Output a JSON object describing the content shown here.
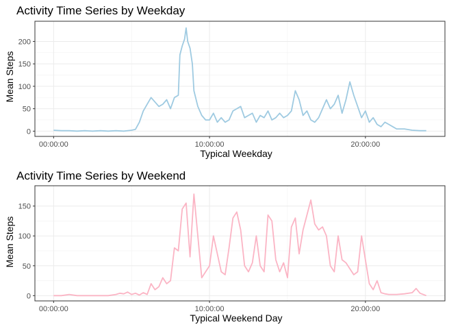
{
  "chart_data": [
    {
      "type": "line",
      "title": "Activity Time Series by Weekday",
      "xlabel": "Typical Weekday",
      "ylabel": "Mean Steps",
      "x_ticks": [
        {
          "hour": 0,
          "label": "00:00:00"
        },
        {
          "hour": 10,
          "label": "10:00:00"
        },
        {
          "hour": 20,
          "label": "20:00:00"
        }
      ],
      "y_ticks": [
        0,
        50,
        100,
        150,
        200
      ],
      "xlim": [
        -1.2,
        25.1
      ],
      "ylim": [
        -11.7,
        245
      ],
      "grid": true,
      "color": "#9ECAE1",
      "series": [
        {
          "x": [
            0,
            0.5,
            1,
            1.5,
            2,
            2.5,
            3,
            3.5,
            4,
            4.5,
            5,
            5.25,
            5.5,
            5.75,
            6,
            6.25,
            6.5,
            6.75,
            7,
            7.25,
            7.5,
            7.75,
            8,
            8.1,
            8.25,
            8.4,
            8.5,
            8.6,
            8.75,
            8.9,
            9,
            9.25,
            9.5,
            9.75,
            10,
            10.25,
            10.5,
            10.75,
            11,
            11.25,
            11.5,
            11.75,
            12,
            12.25,
            12.5,
            12.75,
            13,
            13.25,
            13.5,
            13.75,
            14,
            14.25,
            14.5,
            14.75,
            15,
            15.25,
            15.5,
            15.75,
            16,
            16.25,
            16.5,
            16.75,
            17,
            17.25,
            17.5,
            17.75,
            18,
            18.25,
            18.5,
            18.75,
            19,
            19.25,
            19.5,
            19.75,
            20,
            20.25,
            20.5,
            20.75,
            21,
            21.25,
            21.5,
            21.75,
            22,
            22.5,
            23,
            23.5,
            23.9
          ],
          "y": [
            2,
            1,
            1,
            0,
            1,
            0,
            1,
            0,
            1,
            0,
            2,
            4,
            20,
            45,
            60,
            75,
            65,
            55,
            60,
            70,
            50,
            75,
            80,
            170,
            190,
            205,
            230,
            200,
            185,
            150,
            90,
            55,
            35,
            25,
            25,
            40,
            20,
            30,
            20,
            25,
            45,
            50,
            55,
            30,
            35,
            40,
            20,
            35,
            30,
            45,
            25,
            30,
            40,
            30,
            35,
            45,
            90,
            70,
            35,
            45,
            25,
            20,
            30,
            50,
            70,
            50,
            60,
            80,
            40,
            70,
            110,
            80,
            55,
            30,
            45,
            20,
            30,
            15,
            10,
            20,
            15,
            10,
            5,
            5,
            2,
            1,
            1
          ]
        }
      ]
    },
    {
      "type": "line",
      "title": "Activity Time Series by Weekend",
      "xlabel": "Typical Weekend Day",
      "ylabel": "Mean Steps",
      "x_ticks": [
        {
          "hour": 0,
          "label": "00:00:00"
        },
        {
          "hour": 10,
          "label": "10:00:00"
        },
        {
          "hour": 20,
          "label": "20:00:00"
        }
      ],
      "y_ticks": [
        0,
        50,
        100,
        150
      ],
      "xlim": [
        -1.2,
        25.1
      ],
      "ylim": [
        -8.8,
        184
      ],
      "grid": true,
      "color": "#FBB4C4",
      "series": [
        {
          "x": [
            0,
            0.5,
            1,
            1.5,
            2,
            2.5,
            3,
            3.5,
            4,
            4.25,
            4.5,
            4.75,
            5,
            5.25,
            5.5,
            5.75,
            6,
            6.25,
            6.5,
            6.75,
            7,
            7.25,
            7.5,
            7.75,
            8,
            8.25,
            8.5,
            8.75,
            9,
            9.25,
            9.5,
            9.75,
            10,
            10.25,
            10.5,
            10.75,
            11,
            11.25,
            11.5,
            11.75,
            12,
            12.25,
            12.5,
            12.75,
            13,
            13.25,
            13.5,
            13.75,
            14,
            14.25,
            14.5,
            14.75,
            15,
            15.25,
            15.5,
            15.75,
            16,
            16.25,
            16.5,
            16.75,
            17,
            17.25,
            17.5,
            17.75,
            18,
            18.25,
            18.5,
            18.75,
            19,
            19.25,
            19.5,
            19.75,
            20,
            20.25,
            20.5,
            20.75,
            21,
            21.25,
            21.5,
            21.75,
            22,
            22.5,
            23,
            23.25,
            23.5,
            23.9
          ],
          "y": [
            0,
            0,
            2,
            0,
            0,
            0,
            0,
            0,
            2,
            4,
            3,
            6,
            2,
            4,
            1,
            5,
            2,
            20,
            10,
            15,
            30,
            20,
            25,
            80,
            75,
            145,
            155,
            65,
            170,
            100,
            30,
            40,
            50,
            100,
            70,
            40,
            35,
            80,
            130,
            140,
            110,
            50,
            40,
            55,
            100,
            50,
            40,
            135,
            125,
            60,
            40,
            55,
            30,
            115,
            130,
            70,
            110,
            135,
            160,
            120,
            110,
            115,
            100,
            50,
            40,
            100,
            60,
            55,
            45,
            35,
            40,
            100,
            60,
            20,
            10,
            25,
            5,
            3,
            2,
            2,
            2,
            3,
            5,
            12,
            4,
            0
          ]
        }
      ]
    }
  ]
}
